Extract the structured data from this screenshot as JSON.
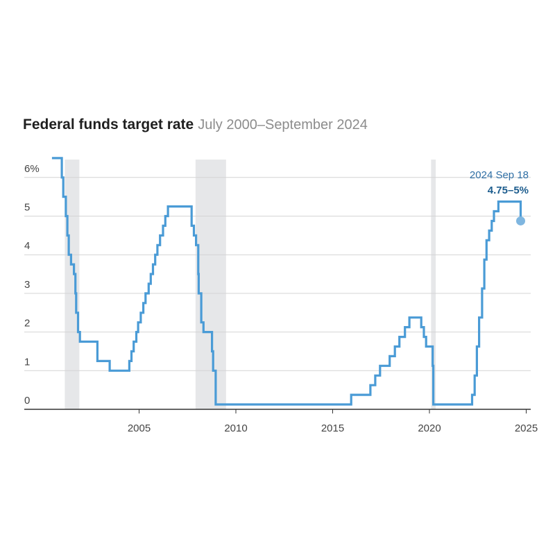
{
  "chart_data": {
    "type": "line",
    "title": "Federal funds target rate",
    "subtitle": "July 2000–September 2024",
    "xlabel": "",
    "ylabel": "",
    "x_ticks": [
      "2005",
      "2010",
      "2015",
      "2020",
      "2025"
    ],
    "y_ticks": [
      "0",
      "1",
      "2",
      "3",
      "4",
      "5",
      "6%"
    ],
    "ylim": [
      0,
      6.5
    ],
    "xlim": [
      "2000-01-01",
      "2025-01-01"
    ],
    "grid": true,
    "shaded_periods": [
      {
        "start": "2001-03-01",
        "end": "2001-11-30"
      },
      {
        "start": "2007-12-01",
        "end": "2009-06-30"
      },
      {
        "start": "2020-02-01",
        "end": "2020-04-30"
      }
    ],
    "annotation": {
      "date_label": "2024 Sep 18",
      "value_label": "4.75–5%"
    },
    "end_point": {
      "date": "2024-09-18",
      "value": 4.875
    },
    "colors": {
      "line": "#4a9bd6",
      "endpoint": "#7fb6e0",
      "shade": "#e6e7e9",
      "grid": "#d4d4d4"
    },
    "series": [
      {
        "points": [
          [
            "2000-07-01",
            6.5
          ],
          [
            "2001-01-03",
            6.0
          ],
          [
            "2001-01-31",
            5.5
          ],
          [
            "2001-03-20",
            5.0
          ],
          [
            "2001-04-18",
            4.5
          ],
          [
            "2001-05-15",
            4.0
          ],
          [
            "2001-06-27",
            3.75
          ],
          [
            "2001-08-21",
            3.5
          ],
          [
            "2001-09-17",
            3.0
          ],
          [
            "2001-10-02",
            2.5
          ],
          [
            "2001-11-06",
            2.0
          ],
          [
            "2001-12-11",
            1.75
          ],
          [
            "2002-11-06",
            1.25
          ],
          [
            "2003-06-25",
            1.0
          ],
          [
            "2004-06-30",
            1.25
          ],
          [
            "2004-08-10",
            1.5
          ],
          [
            "2004-09-21",
            1.75
          ],
          [
            "2004-11-10",
            2.0
          ],
          [
            "2004-12-14",
            2.25
          ],
          [
            "2005-02-02",
            2.5
          ],
          [
            "2005-03-22",
            2.75
          ],
          [
            "2005-05-03",
            3.0
          ],
          [
            "2005-06-30",
            3.25
          ],
          [
            "2005-08-09",
            3.5
          ],
          [
            "2005-09-20",
            3.75
          ],
          [
            "2005-11-01",
            4.0
          ],
          [
            "2005-12-13",
            4.25
          ],
          [
            "2006-01-31",
            4.5
          ],
          [
            "2006-03-28",
            4.75
          ],
          [
            "2006-05-10",
            5.0
          ],
          [
            "2006-06-29",
            5.25
          ],
          [
            "2007-09-18",
            4.75
          ],
          [
            "2007-10-31",
            4.5
          ],
          [
            "2007-12-11",
            4.25
          ],
          [
            "2008-01-22",
            3.5
          ],
          [
            "2008-01-30",
            3.0
          ],
          [
            "2008-03-18",
            2.25
          ],
          [
            "2008-04-30",
            2.0
          ],
          [
            "2008-10-08",
            1.5
          ],
          [
            "2008-10-29",
            1.0
          ],
          [
            "2008-12-16",
            0.125
          ],
          [
            "2015-12-16",
            0.375
          ],
          [
            "2016-12-14",
            0.625
          ],
          [
            "2017-03-15",
            0.875
          ],
          [
            "2017-06-14",
            1.125
          ],
          [
            "2017-12-13",
            1.375
          ],
          [
            "2018-03-21",
            1.625
          ],
          [
            "2018-06-13",
            1.875
          ],
          [
            "2018-09-26",
            2.125
          ],
          [
            "2018-12-19",
            2.375
          ],
          [
            "2019-07-31",
            2.125
          ],
          [
            "2019-09-18",
            1.875
          ],
          [
            "2019-10-30",
            1.625
          ],
          [
            "2020-03-03",
            1.125
          ],
          [
            "2020-03-15",
            0.125
          ],
          [
            "2022-03-16",
            0.375
          ],
          [
            "2022-05-04",
            0.875
          ],
          [
            "2022-06-15",
            1.625
          ],
          [
            "2022-07-27",
            2.375
          ],
          [
            "2022-09-21",
            3.125
          ],
          [
            "2022-11-02",
            3.875
          ],
          [
            "2022-12-14",
            4.375
          ],
          [
            "2023-02-01",
            4.625
          ],
          [
            "2023-03-22",
            4.875
          ],
          [
            "2023-05-03",
            5.125
          ],
          [
            "2023-07-26",
            5.375
          ],
          [
            "2024-09-18",
            4.875
          ]
        ]
      }
    ]
  }
}
